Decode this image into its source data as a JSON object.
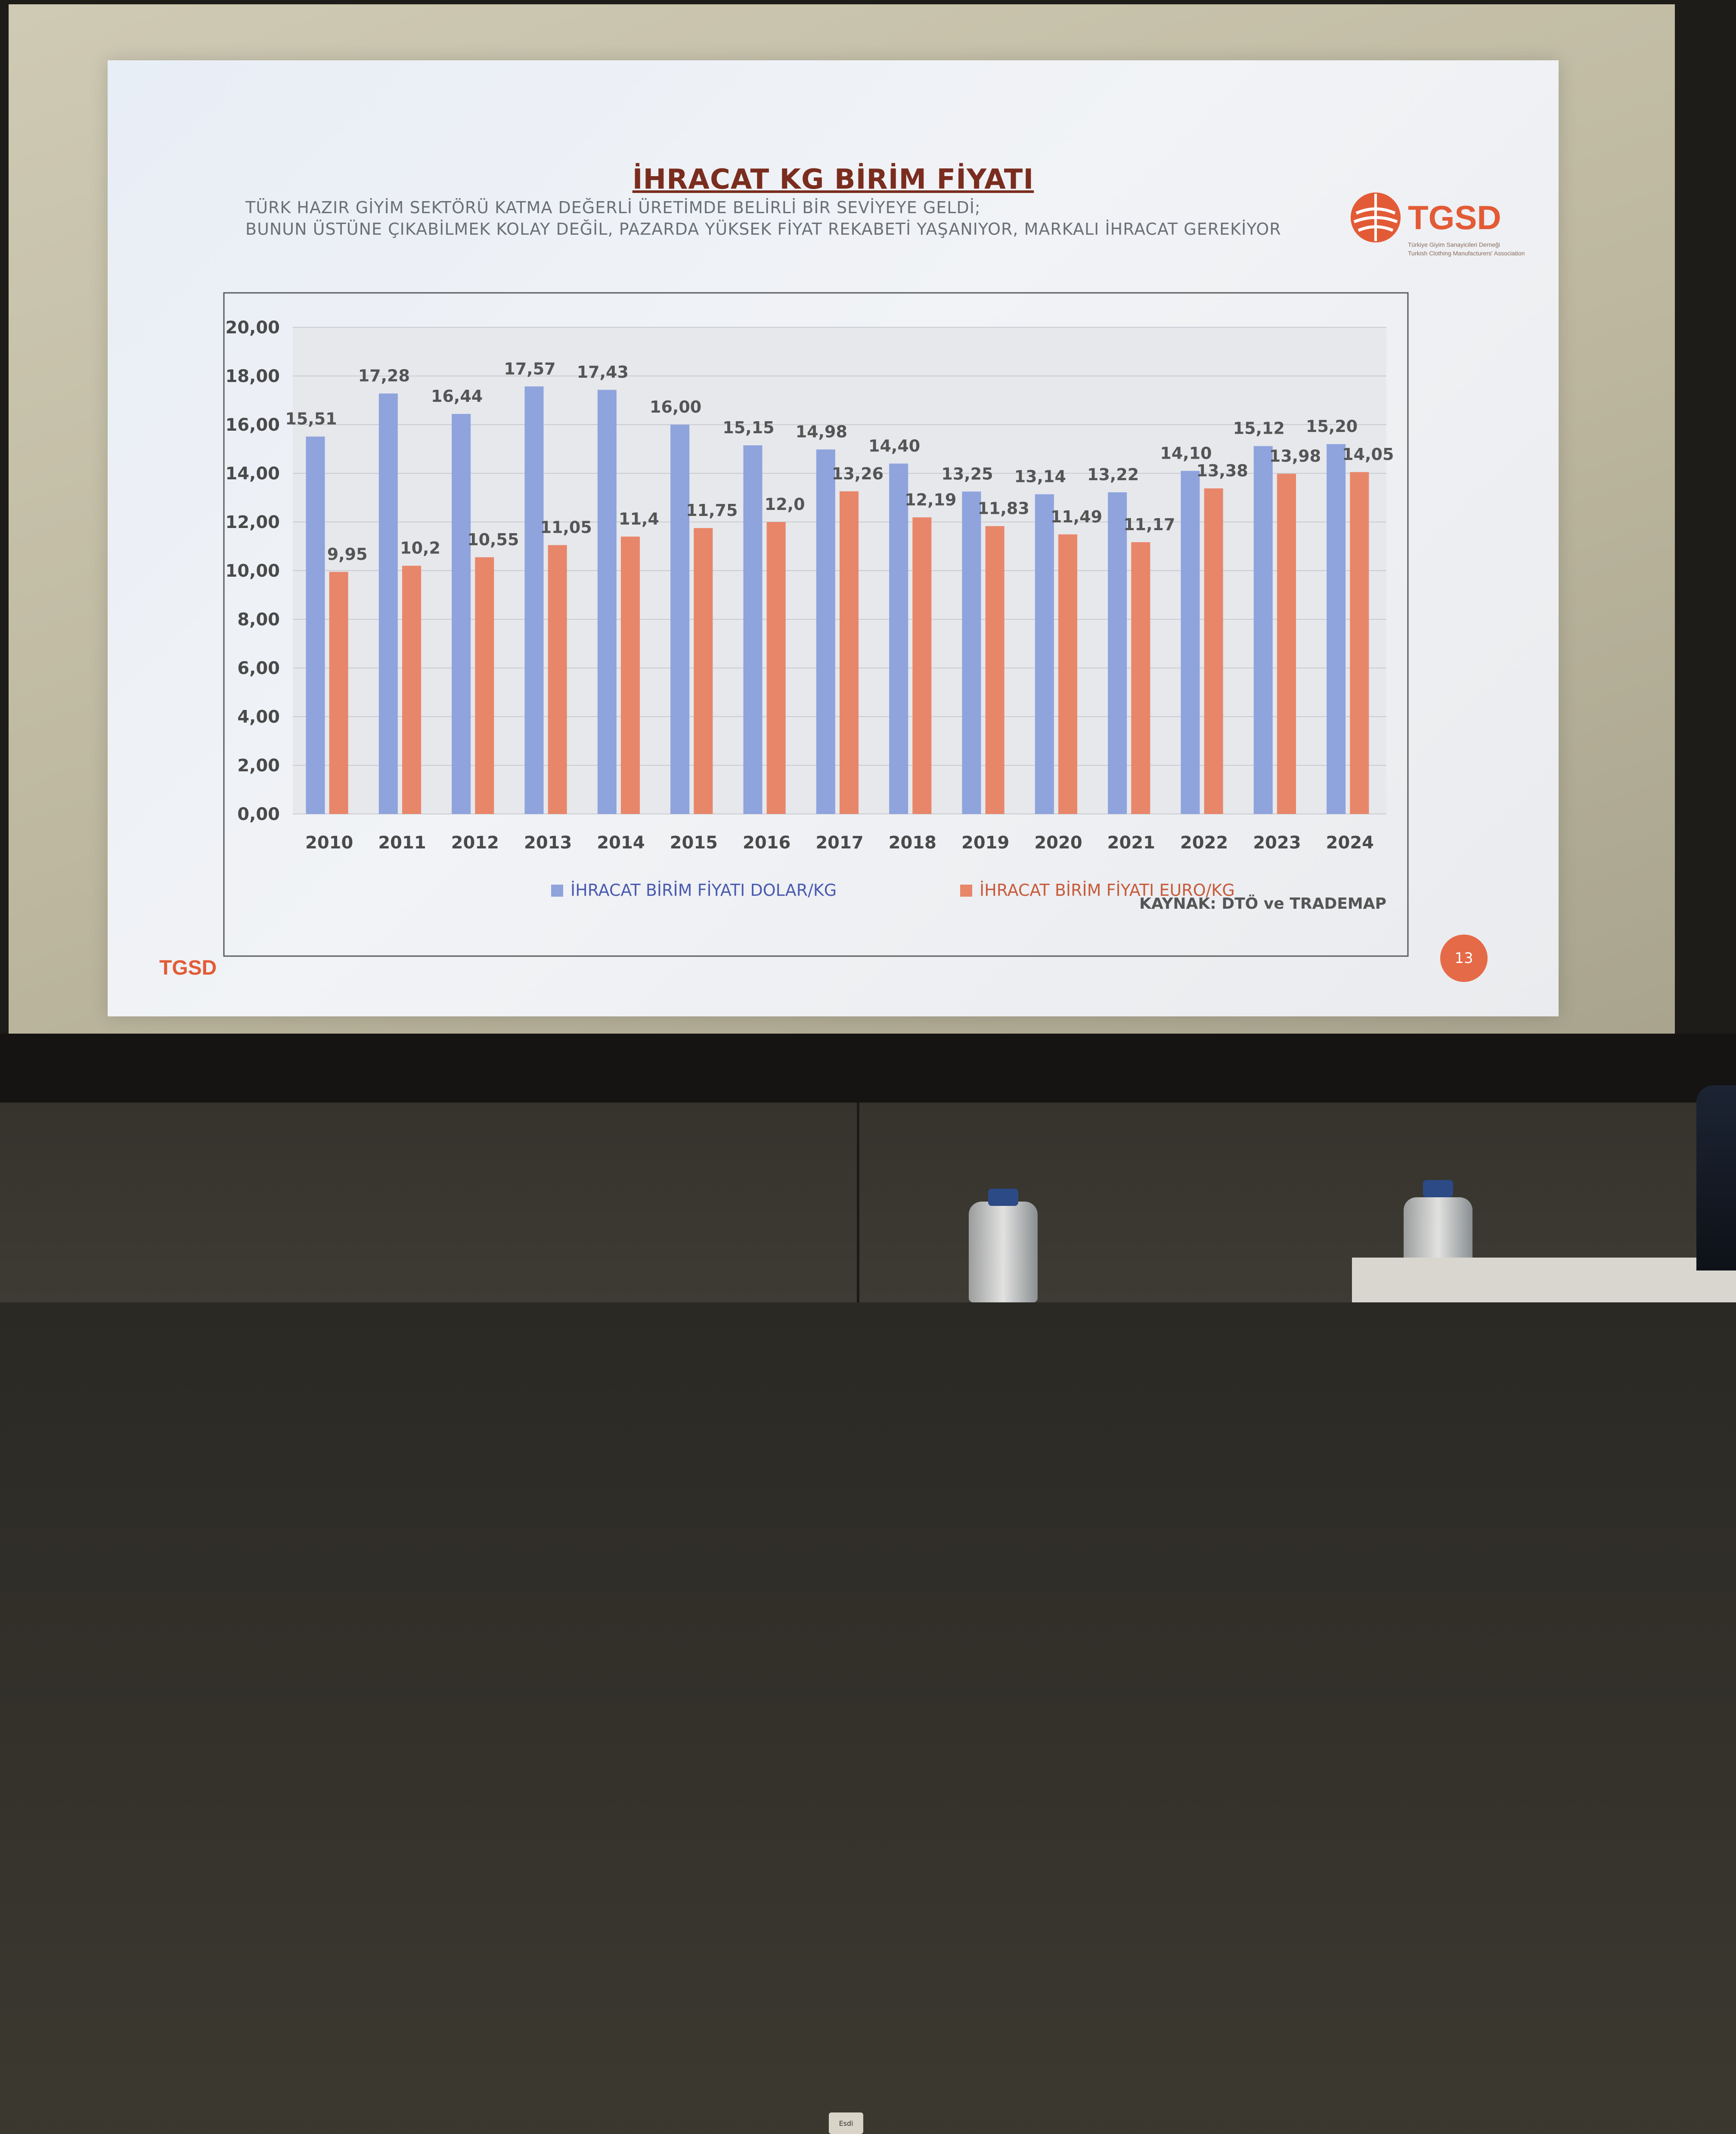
{
  "slide": {
    "title": "İHRACAT KG BİRİM FİYATI",
    "subtitle_lines": [
      "TÜRK HAZIR GİYİM SEKTÖRÜ KATMA DEĞERLİ ÜRETİMDE BELİRLİ BİR SEVİYEYE GELDİ;",
      "BUNUN ÜSTÜNE ÇIKABİLMEK KOLAY DEĞİL, PAZARDA YÜKSEK FİYAT REKABETİ YAŞANIYOR, MARKALI İHRACAT GEREKİYOR"
    ],
    "logo": {
      "name": "TGSD",
      "line1": "Türkiye Giyim Sanayicileri Derneği",
      "line2": "Turkish Clothing Manufacturers' Association"
    },
    "footer_brand": "TGSD",
    "page_number": "13",
    "source_note": "KAYNAK: DTÖ ve TRADEMAP"
  },
  "colors": {
    "dollar": "#8fa3dd",
    "euro": "#e8866a",
    "title": "#7a2d1e",
    "brand": "#e25b36"
  },
  "chart_data": {
    "type": "bar",
    "categories": [
      "2010",
      "2011",
      "2012",
      "2013",
      "2014",
      "2015",
      "2016",
      "2017",
      "2018",
      "2019",
      "2020",
      "2021",
      "2022",
      "2023",
      "2024"
    ],
    "series": [
      {
        "name": "İHRACAT BİRİM FİYATI DOLAR/KG",
        "values": [
          15.51,
          17.28,
          16.44,
          17.57,
          17.43,
          16.0,
          15.15,
          14.98,
          14.4,
          13.25,
          13.14,
          13.22,
          14.1,
          15.12,
          15.2
        ],
        "labels": [
          "15,51",
          "17,28",
          "16,44",
          "17,57",
          "17,43",
          "16,00",
          "15,15",
          "14,98",
          "14,40",
          "13,25",
          "13,14",
          "13,22",
          "14,10",
          "15,12",
          "15,20"
        ]
      },
      {
        "name": "İHRACAT BİRİM FİYATI EURO/KG",
        "values": [
          9.95,
          10.2,
          10.55,
          11.05,
          11.4,
          11.75,
          12.0,
          13.26,
          12.19,
          11.83,
          11.49,
          11.17,
          13.38,
          13.98,
          14.05
        ],
        "labels": [
          "9,95",
          "10,2",
          "10,55",
          "11,05",
          "11,4",
          "11,75",
          "12,0",
          "13,26",
          "12,19",
          "11,83",
          "11,49",
          "11,17",
          "13,38",
          "13,98",
          "14,05"
        ]
      }
    ],
    "y_ticks": [
      "0,00",
      "2,00",
      "4,00",
      "6,00",
      "8,00",
      "10,00",
      "12,00",
      "14,00",
      "16,00",
      "18,00",
      "20,00"
    ],
    "ylim": [
      0,
      20
    ],
    "grid": true,
    "legend_position": "bottom"
  },
  "scene": {
    "monitor_badge": "Esdi"
  }
}
